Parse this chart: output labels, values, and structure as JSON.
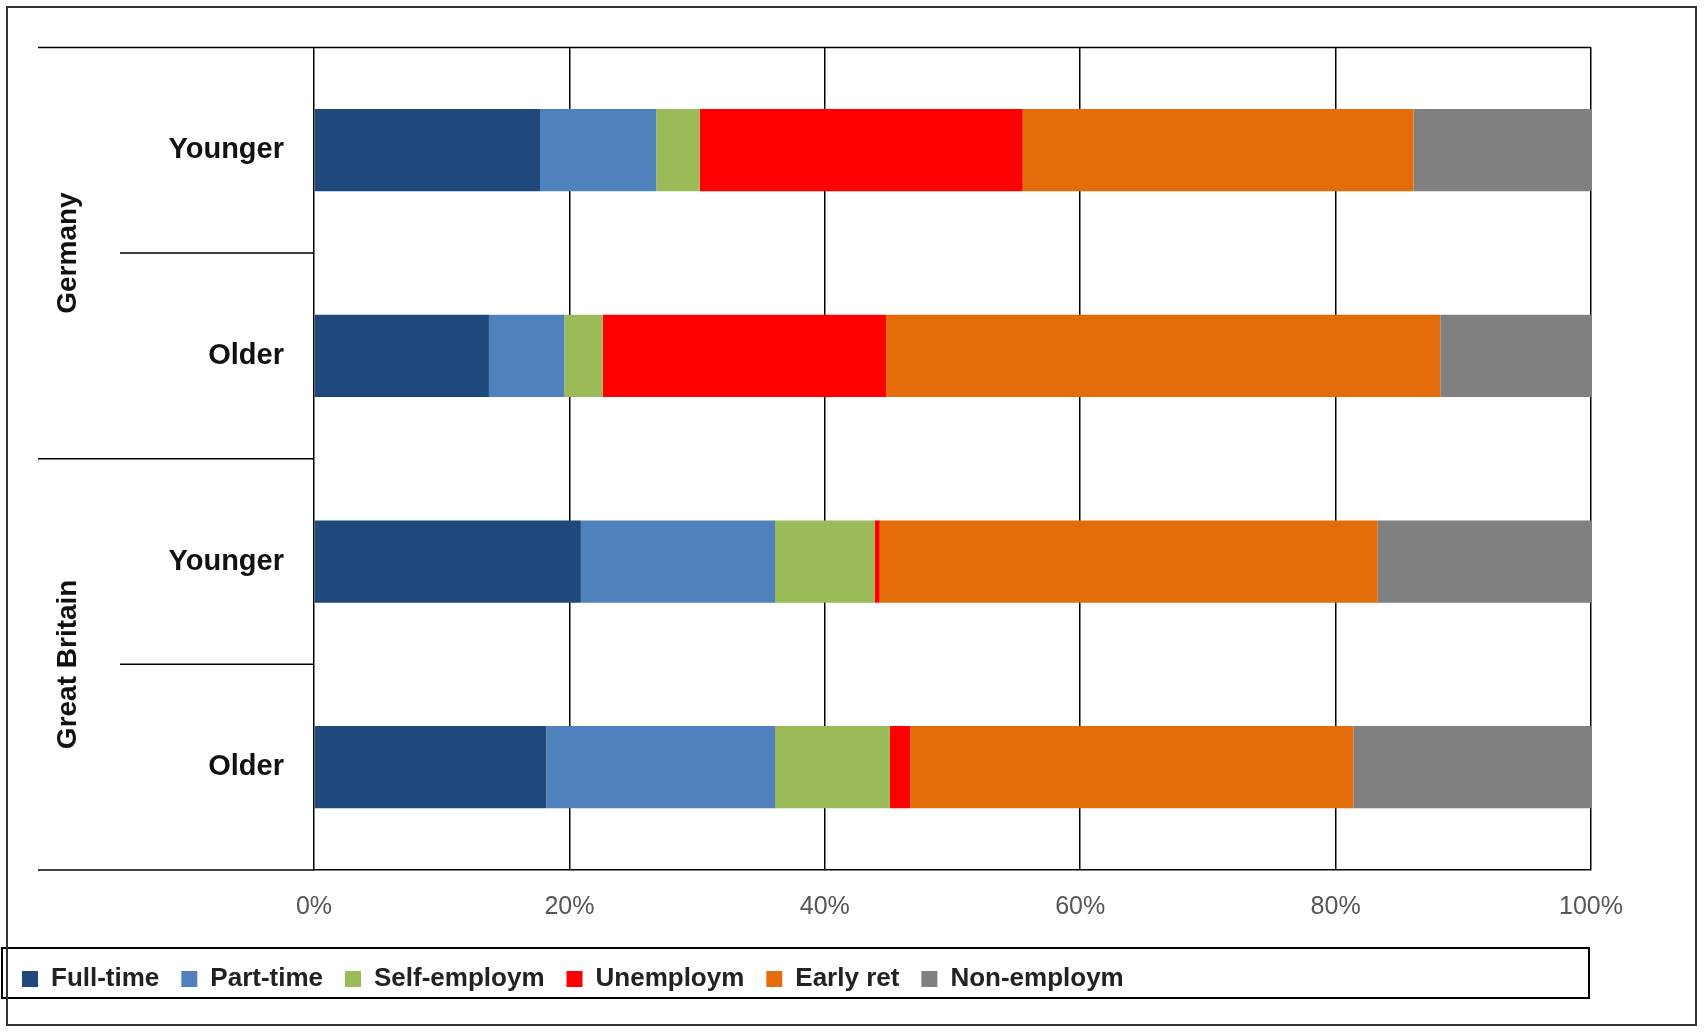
{
  "chart_data": {
    "type": "bar",
    "orientation": "horizontal",
    "stacked": true,
    "categories": [
      "Younger",
      "Older",
      "Younger",
      "Older"
    ],
    "annotations": [
      "Germany",
      "Great Britain"
    ],
    "series": [
      {
        "name": "Full-time",
        "color": "#1f497d",
        "values": [
          17.7,
          13.7,
          20.9,
          18.2
        ]
      },
      {
        "name": "Part-time",
        "color": "#4f81bd",
        "values": [
          9.1,
          5.9,
          15.2,
          17.9
        ]
      },
      {
        "name": "Self-employm",
        "color": "#9bbb59",
        "values": [
          3.4,
          3.0,
          7.8,
          9.0
        ]
      },
      {
        "name": "Unemploym",
        "color": "#ff0000",
        "values": [
          25.3,
          22.2,
          0.4,
          1.6
        ]
      },
      {
        "name": "Early ret",
        "color": "#e46c0a",
        "values": [
          30.6,
          43.4,
          39.0,
          34.7
        ]
      },
      {
        "name": "Non-employm",
        "color": "#808080",
        "values": [
          13.9,
          11.8,
          16.7,
          18.6
        ]
      }
    ],
    "xlim": [
      0,
      100
    ],
    "xticks": [
      {
        "value": 0,
        "label": "0%"
      },
      {
        "value": 20,
        "label": "20%"
      },
      {
        "value": 40,
        "label": "40%"
      },
      {
        "value": 60,
        "label": "60%"
      },
      {
        "value": 80,
        "label": "80%"
      },
      {
        "value": 100,
        "label": "100%"
      }
    ],
    "grid": "x",
    "legend": "bottom"
  }
}
